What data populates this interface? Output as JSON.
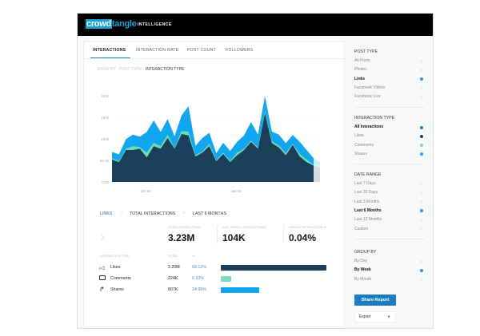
{
  "header": {
    "logo_text": "crowdtangle",
    "logo_box": "crowd",
    "logo_rest": "tangle",
    "app_name": "INTELLIGENCE"
  },
  "tabs": [
    {
      "label": "INTERACTIONS",
      "active": true
    },
    {
      "label": "INTERACTION RATE"
    },
    {
      "label": "POST COUNT"
    },
    {
      "label": "FOLLOWERS"
    }
  ],
  "show_by": {
    "label": "SHOW BY",
    "options": [
      "POST TYPE",
      "INTERACTION TYPE"
    ],
    "selected": "INTERACTION TYPE"
  },
  "chart_data": {
    "type": "area",
    "stacked": true,
    "y_ticks": [
      "0.00",
      "50.0k",
      "100k",
      "150k",
      "200k"
    ],
    "ylim": [
      0,
      200000
    ],
    "x_ticks": [
      {
        "label": "Oct 01",
        "index": 5
      },
      {
        "label": "Jan 01",
        "index": 18
      }
    ],
    "grid": true,
    "series": [
      {
        "key": "likes",
        "color": "#1b3f5a",
        "values": [
          52,
          46,
          74,
          74,
          77,
          57,
          83,
          77,
          102,
          77,
          111,
          108,
          59,
          68,
          83,
          48,
          65,
          46,
          62,
          74,
          93,
          77,
          160,
          90,
          80,
          62,
          86,
          59,
          46,
          38
        ]
      },
      {
        "key": "comments",
        "color": "#6fdcb4",
        "values": [
          3,
          3,
          3,
          9,
          4,
          11,
          8,
          6,
          8,
          2,
          7,
          9,
          3,
          3,
          6,
          3,
          3,
          3,
          6,
          3,
          3,
          3,
          6,
          5,
          5,
          5,
          3,
          6,
          6,
          2
        ]
      },
      {
        "key": "shares",
        "color": "#12a5f0",
        "values": [
          15,
          15,
          22,
          27,
          24,
          48,
          52,
          33,
          36,
          27,
          36,
          59,
          22,
          31,
          25,
          16,
          23,
          23,
          25,
          31,
          43,
          30,
          33,
          22,
          25,
          23,
          20,
          28,
          22,
          15
        ]
      }
    ],
    "partial_period": {
      "likes": 34,
      "comments": 4,
      "shares": 8
    }
  },
  "breadcrumb": [
    "LINKS",
    "TOTAL INTERACTIONS",
    "LAST 6 MONTHS"
  ],
  "metrics": [
    {
      "label": "TOTAL INTERACTIONS",
      "value": "3.23M"
    },
    {
      "label": "AVG. WEEKLY INTERACTIONS",
      "value": "104K"
    },
    {
      "label": "WEEKLY INTERACTION %",
      "value": "0.04%"
    }
  ],
  "breakdown": {
    "headers": [
      "INTERACTION TYPE",
      "TOTAL",
      "%"
    ],
    "rows": [
      {
        "name": "Likes",
        "total": "2.20M",
        "pct": "68.12%",
        "share": 68.12,
        "color": "#1b3f5a",
        "icon": "thumbs-up-icon"
      },
      {
        "name": "Comments",
        "total": "224K",
        "pct": "6.93%",
        "share": 6.93,
        "color": "#7fdcb8",
        "icon": "comment-icon"
      },
      {
        "name": "Shares",
        "total": "807K",
        "pct": "24.95%",
        "share": 24.95,
        "color": "#12a5f0",
        "icon": "share-arrow-icon"
      }
    ]
  },
  "sidebar": {
    "post_type": {
      "title": "POST TYPE",
      "items": [
        "All Posts",
        "Photos",
        "Links",
        "Facebook Videos",
        "Facebook Live"
      ],
      "selected": "Links"
    },
    "interaction_type": {
      "title": "INTERACTION TYPE",
      "items": [
        "All Interactions",
        "Likes",
        "Comments",
        "Shares"
      ],
      "selected": "All Interactions",
      "dot_colors": [
        "#1b7cc1",
        "#1b3f5a",
        "#6fdcb4",
        "#12a5f0"
      ]
    },
    "date_range": {
      "title": "DATE RANGE",
      "items": [
        "Last 7 Days",
        "Last 30 Days",
        "Last 3 Months",
        "Last 6 Months",
        "Last 12 Months",
        "Custom"
      ],
      "selected": "Last 6 Months"
    },
    "group_by": {
      "title": "GROUP BY",
      "items": [
        "By Day",
        "By Week",
        "By Month"
      ],
      "selected": "By Week"
    },
    "share_label": "Share Report",
    "export_label": "Export"
  }
}
